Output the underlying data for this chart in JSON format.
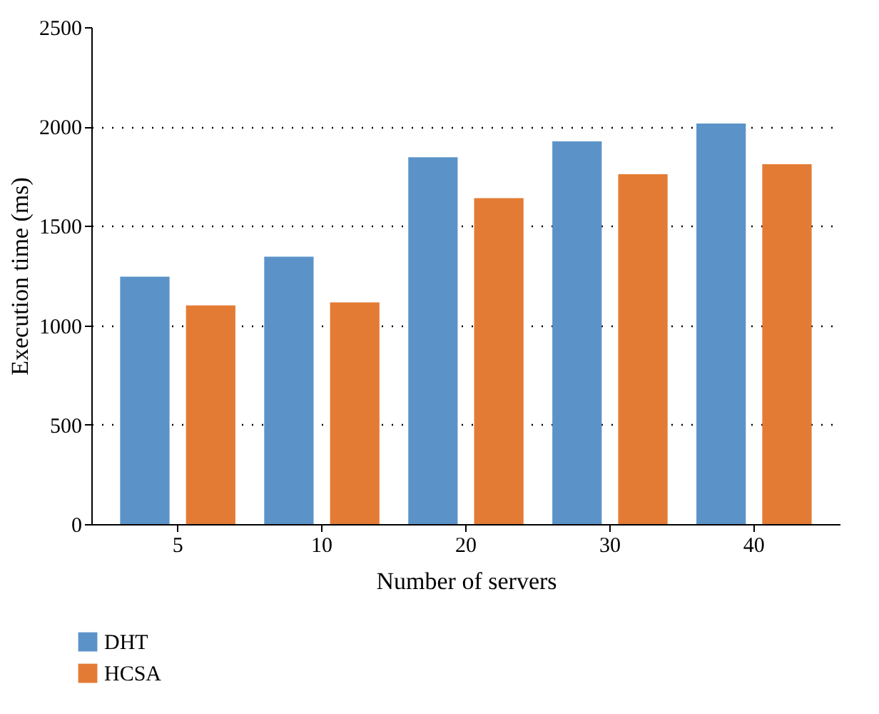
{
  "chart_data": {
    "type": "bar",
    "xlabel": "Number of servers",
    "ylabel": "Execution time (ms)",
    "categories": [
      "5",
      "10",
      "20",
      "30",
      "40"
    ],
    "series": [
      {
        "name": "DHT",
        "color": "#5b93c9",
        "values": [
          1245,
          1345,
          1845,
          1925,
          2015
        ]
      },
      {
        "name": "HCSA",
        "color": "#e47b34",
        "values": [
          1100,
          1115,
          1640,
          1760,
          1810
        ]
      }
    ],
    "ylim": [
      0,
      2500
    ],
    "yticks": [
      0,
      500,
      {
        "value": 1000,
        "label": "1000"
      },
      {
        "value": 1500,
        "label": "1500"
      },
      {
        "value": 2000,
        "label": "2000"
      },
      {
        "value": 2500,
        "label": "2500"
      }
    ],
    "grid": "y",
    "legend": "bottom left"
  }
}
